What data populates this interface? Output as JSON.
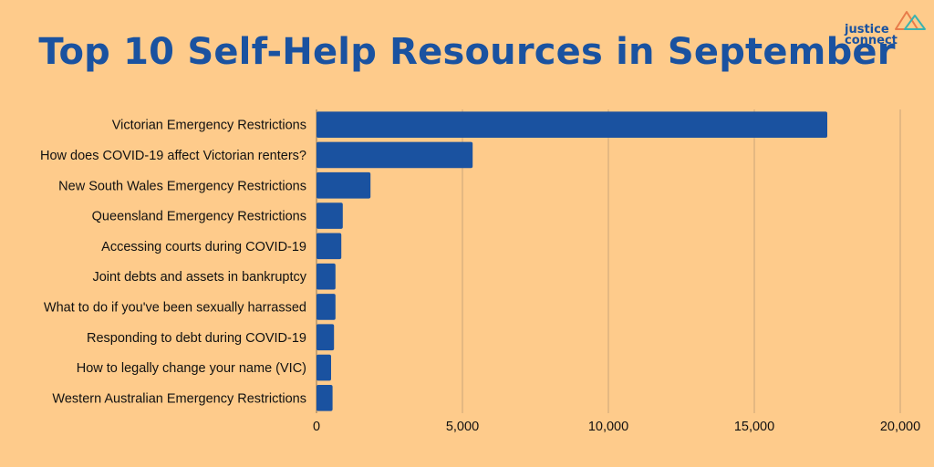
{
  "title": "Top 10 Self-Help Resources in September",
  "logo": {
    "line1": "justice",
    "line2": "connect"
  },
  "colors": {
    "background": "#fecb8b",
    "bar": "#1a52a0",
    "title": "#1a52a0",
    "grid": "#c9a57a"
  },
  "chart_data": {
    "type": "bar",
    "orientation": "horizontal",
    "categories": [
      "Victorian Emergency Restrictions",
      "How does COVID-19 affect Victorian renters?",
      "New South Wales Emergency Restrictions",
      "Queensland Emergency Restrictions",
      "Accessing courts during COVID-19",
      "Joint debts and assets in bankruptcy",
      "What to do if you've been sexually harrassed",
      "Responding to debt during COVID-19",
      "How to legally change your name (VIC)",
      "Western Australian Emergency Restrictions"
    ],
    "values": [
      17500,
      5350,
      1850,
      900,
      850,
      650,
      650,
      600,
      500,
      550
    ],
    "xlim": [
      0,
      20000
    ],
    "xticks": [
      0,
      5000,
      10000,
      15000,
      20000
    ],
    "xtick_labels": [
      "0",
      "5,000",
      "10,000",
      "15,000",
      "20,000"
    ],
    "grid": "vertical",
    "xlabel": "",
    "ylabel": ""
  }
}
